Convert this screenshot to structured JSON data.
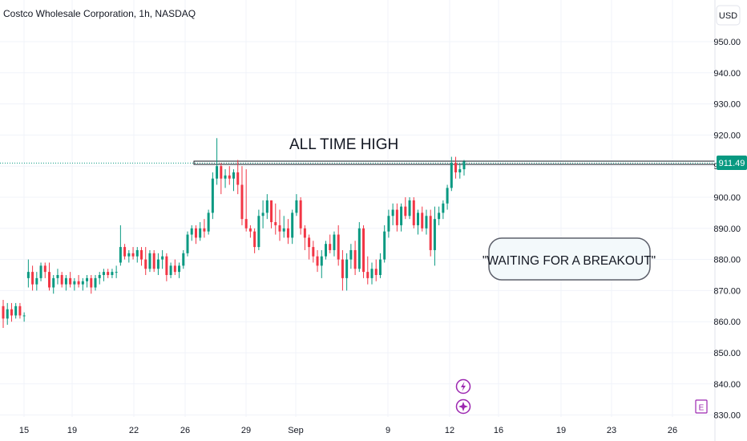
{
  "header": {
    "title": "Costco Wholesale Corporation, 1h, NASDAQ",
    "currency_button": "USD"
  },
  "annotations": {
    "ath_label": "ALL TIME HIGH",
    "callout": "\"WAITING FOR A BREAKOUT\""
  },
  "price_badge": "911.49",
  "colors": {
    "up": "#089981",
    "down": "#f23645",
    "grid": "#f0f3fa",
    "axis_text": "#131722",
    "badge": "#089981",
    "event_icon": "#9c27b0",
    "callout_bg": "#f3f9fb"
  },
  "icons": [
    "lightning-icon",
    "dividend-icon",
    "earnings-icon"
  ],
  "earnings_marker": "E",
  "chart_data": {
    "type": "candlestick",
    "title": "Costco Wholesale Corporation, 1h, NASDAQ",
    "x_tick_labels": [
      "15",
      "19",
      "22",
      "26",
      "29",
      "Sep",
      "9",
      "12",
      "16",
      "19",
      "23",
      "26"
    ],
    "y_tick_labels": [
      "830.00",
      "840.00",
      "850.00",
      "860.00",
      "870.00",
      "880.00",
      "890.00",
      "900.00",
      "910.00",
      "920.00",
      "930.00",
      "940.00",
      "950.00"
    ],
    "ylim": [
      830,
      954
    ],
    "last_price": 911.49,
    "ath_level": 911.2,
    "grid": true,
    "candles": [
      {
        "o": 865,
        "h": 867,
        "l": 858,
        "c": 861
      },
      {
        "o": 861,
        "h": 866,
        "l": 859,
        "c": 864
      },
      {
        "o": 864,
        "h": 866,
        "l": 860,
        "c": 862
      },
      {
        "o": 862,
        "h": 866,
        "l": 861,
        "c": 865
      },
      {
        "o": 865,
        "h": 866,
        "l": 861,
        "c": 862
      },
      {
        "o": 862,
        "h": 863,
        "l": 860,
        "c": 862
      },
      {
        "o": 874,
        "h": 880,
        "l": 871,
        "c": 876
      },
      {
        "o": 876,
        "h": 878,
        "l": 870,
        "c": 872
      },
      {
        "o": 872,
        "h": 876,
        "l": 870,
        "c": 874
      },
      {
        "o": 874,
        "h": 879,
        "l": 873,
        "c": 878
      },
      {
        "o": 878,
        "h": 879,
        "l": 874,
        "c": 876
      },
      {
        "o": 876,
        "h": 879,
        "l": 870,
        "c": 871
      },
      {
        "o": 871,
        "h": 875,
        "l": 869,
        "c": 874
      },
      {
        "o": 874,
        "h": 877,
        "l": 872,
        "c": 875
      },
      {
        "o": 875,
        "h": 876,
        "l": 871,
        "c": 872
      },
      {
        "o": 872,
        "h": 875,
        "l": 870,
        "c": 874
      },
      {
        "o": 874,
        "h": 876,
        "l": 871,
        "c": 872
      },
      {
        "o": 872,
        "h": 874,
        "l": 870,
        "c": 873
      },
      {
        "o": 873,
        "h": 875,
        "l": 871,
        "c": 872
      },
      {
        "o": 872,
        "h": 874,
        "l": 870,
        "c": 873
      },
      {
        "o": 873,
        "h": 875,
        "l": 871,
        "c": 874
      },
      {
        "o": 874,
        "h": 875,
        "l": 869,
        "c": 871
      },
      {
        "o": 871,
        "h": 875,
        "l": 870,
        "c": 874
      },
      {
        "o": 874,
        "h": 876,
        "l": 872,
        "c": 875
      },
      {
        "o": 875,
        "h": 877,
        "l": 873,
        "c": 876
      },
      {
        "o": 876,
        "h": 877,
        "l": 874,
        "c": 875
      },
      {
        "o": 875,
        "h": 877,
        "l": 874,
        "c": 876
      },
      {
        "o": 876,
        "h": 878,
        "l": 874,
        "c": 876
      },
      {
        "o": 879,
        "h": 891,
        "l": 878,
        "c": 884
      },
      {
        "o": 884,
        "h": 885,
        "l": 880,
        "c": 881
      },
      {
        "o": 881,
        "h": 883,
        "l": 879,
        "c": 882
      },
      {
        "o": 882,
        "h": 884,
        "l": 880,
        "c": 881
      },
      {
        "o": 881,
        "h": 884,
        "l": 879,
        "c": 883
      },
      {
        "o": 883,
        "h": 884,
        "l": 878,
        "c": 880
      },
      {
        "o": 880,
        "h": 884,
        "l": 875,
        "c": 877
      },
      {
        "o": 877,
        "h": 883,
        "l": 876,
        "c": 882
      },
      {
        "o": 882,
        "h": 883,
        "l": 876,
        "c": 877
      },
      {
        "o": 877,
        "h": 882,
        "l": 875,
        "c": 880
      },
      {
        "o": 880,
        "h": 883,
        "l": 877,
        "c": 881
      },
      {
        "o": 881,
        "h": 882,
        "l": 873,
        "c": 875
      },
      {
        "o": 875,
        "h": 879,
        "l": 874,
        "c": 878
      },
      {
        "o": 878,
        "h": 880,
        "l": 875,
        "c": 876
      },
      {
        "o": 876,
        "h": 879,
        "l": 874,
        "c": 878
      },
      {
        "o": 878,
        "h": 883,
        "l": 877,
        "c": 882
      },
      {
        "o": 882,
        "h": 889,
        "l": 881,
        "c": 888
      },
      {
        "o": 888,
        "h": 891,
        "l": 886,
        "c": 890
      },
      {
        "o": 890,
        "h": 891,
        "l": 885,
        "c": 887
      },
      {
        "o": 887,
        "h": 892,
        "l": 886,
        "c": 890
      },
      {
        "o": 890,
        "h": 893,
        "l": 887,
        "c": 889
      },
      {
        "o": 889,
        "h": 896,
        "l": 888,
        "c": 895
      },
      {
        "o": 895,
        "h": 908,
        "l": 893,
        "c": 906
      },
      {
        "o": 906,
        "h": 919,
        "l": 904,
        "c": 910
      },
      {
        "o": 910,
        "h": 911,
        "l": 901,
        "c": 906
      },
      {
        "o": 906,
        "h": 909,
        "l": 903,
        "c": 907
      },
      {
        "o": 907,
        "h": 910,
        "l": 904,
        "c": 906
      },
      {
        "o": 906,
        "h": 909,
        "l": 902,
        "c": 908
      },
      {
        "o": 908,
        "h": 912,
        "l": 901,
        "c": 904
      },
      {
        "o": 904,
        "h": 910,
        "l": 891,
        "c": 893
      },
      {
        "o": 893,
        "h": 909,
        "l": 889,
        "c": 890
      },
      {
        "o": 890,
        "h": 891,
        "l": 887,
        "c": 889
      },
      {
        "o": 889,
        "h": 890,
        "l": 882,
        "c": 884
      },
      {
        "o": 884,
        "h": 896,
        "l": 883,
        "c": 894
      },
      {
        "o": 894,
        "h": 899,
        "l": 890,
        "c": 895
      },
      {
        "o": 895,
        "h": 901,
        "l": 893,
        "c": 899
      },
      {
        "o": 899,
        "h": 899,
        "l": 890,
        "c": 892
      },
      {
        "o": 892,
        "h": 898,
        "l": 888,
        "c": 891
      },
      {
        "o": 891,
        "h": 896,
        "l": 886,
        "c": 889
      },
      {
        "o": 889,
        "h": 894,
        "l": 887,
        "c": 890
      },
      {
        "o": 890,
        "h": 893,
        "l": 885,
        "c": 887
      },
      {
        "o": 887,
        "h": 896,
        "l": 885,
        "c": 895
      },
      {
        "o": 895,
        "h": 901,
        "l": 894,
        "c": 899
      },
      {
        "o": 899,
        "h": 900,
        "l": 888,
        "c": 890
      },
      {
        "o": 890,
        "h": 891,
        "l": 883,
        "c": 887
      },
      {
        "o": 887,
        "h": 888,
        "l": 880,
        "c": 884
      },
      {
        "o": 884,
        "h": 886,
        "l": 879,
        "c": 881
      },
      {
        "o": 881,
        "h": 883,
        "l": 876,
        "c": 878
      },
      {
        "o": 878,
        "h": 883,
        "l": 874,
        "c": 881
      },
      {
        "o": 881,
        "h": 886,
        "l": 880,
        "c": 885
      },
      {
        "o": 885,
        "h": 888,
        "l": 882,
        "c": 883
      },
      {
        "o": 883,
        "h": 889,
        "l": 881,
        "c": 888
      },
      {
        "o": 888,
        "h": 891,
        "l": 878,
        "c": 880
      },
      {
        "o": 880,
        "h": 883,
        "l": 870,
        "c": 874
      },
      {
        "o": 874,
        "h": 882,
        "l": 870,
        "c": 880
      },
      {
        "o": 880,
        "h": 885,
        "l": 877,
        "c": 883
      },
      {
        "o": 883,
        "h": 886,
        "l": 875,
        "c": 877
      },
      {
        "o": 877,
        "h": 892,
        "l": 876,
        "c": 890
      },
      {
        "o": 890,
        "h": 891,
        "l": 874,
        "c": 876
      },
      {
        "o": 876,
        "h": 881,
        "l": 872,
        "c": 874
      },
      {
        "o": 874,
        "h": 879,
        "l": 872,
        "c": 877
      },
      {
        "o": 877,
        "h": 880,
        "l": 873,
        "c": 875
      },
      {
        "o": 875,
        "h": 882,
        "l": 874,
        "c": 880
      },
      {
        "o": 880,
        "h": 891,
        "l": 879,
        "c": 889
      },
      {
        "o": 889,
        "h": 896,
        "l": 887,
        "c": 894
      },
      {
        "o": 894,
        "h": 898,
        "l": 891,
        "c": 896
      },
      {
        "o": 896,
        "h": 898,
        "l": 889,
        "c": 891
      },
      {
        "o": 891,
        "h": 898,
        "l": 889,
        "c": 897
      },
      {
        "o": 897,
        "h": 900,
        "l": 893,
        "c": 894
      },
      {
        "o": 894,
        "h": 900,
        "l": 893,
        "c": 899
      },
      {
        "o": 899,
        "h": 900,
        "l": 890,
        "c": 891
      },
      {
        "o": 891,
        "h": 896,
        "l": 888,
        "c": 895
      },
      {
        "o": 895,
        "h": 897,
        "l": 889,
        "c": 890
      },
      {
        "o": 890,
        "h": 896,
        "l": 888,
        "c": 894
      },
      {
        "o": 894,
        "h": 896,
        "l": 881,
        "c": 883
      },
      {
        "o": 883,
        "h": 897,
        "l": 878,
        "c": 893
      },
      {
        "o": 893,
        "h": 897,
        "l": 891,
        "c": 895
      },
      {
        "o": 895,
        "h": 899,
        "l": 893,
        "c": 898
      },
      {
        "o": 898,
        "h": 904,
        "l": 896,
        "c": 903
      },
      {
        "o": 903,
        "h": 913,
        "l": 902,
        "c": 911
      },
      {
        "o": 911,
        "h": 913,
        "l": 906,
        "c": 908
      },
      {
        "o": 908,
        "h": 911,
        "l": 906,
        "c": 909
      },
      {
        "o": 909,
        "h": 912,
        "l": 907,
        "c": 911.49
      }
    ]
  }
}
